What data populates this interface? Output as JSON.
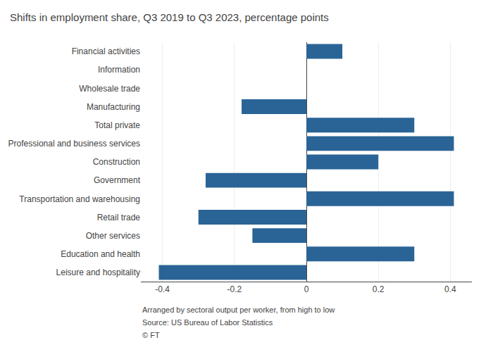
{
  "chart_data": {
    "type": "bar",
    "orientation": "horizontal",
    "title": "Shifts in employment share, Q3 2019 to Q3 2023, percentage points",
    "categories": [
      "Financial activities",
      "Information",
      "Wholesale trade",
      "Manufacturing",
      "Total private",
      "Professional and business services",
      "Construction",
      "Government",
      "Transportation and warehousing",
      "Retail trade",
      "Other services",
      "Education and health",
      "Leisure and hospitality"
    ],
    "values": [
      0.1,
      0.0,
      0.0,
      -0.18,
      0.3,
      0.41,
      0.2,
      -0.28,
      0.41,
      -0.3,
      -0.15,
      0.3,
      -0.41
    ],
    "color": "#2a6496",
    "xlim": [
      -0.46,
      0.46
    ],
    "xticks": [
      -0.4,
      -0.2,
      0,
      0.2,
      0.4
    ],
    "grid": true,
    "annotations": [
      "Arranged by sectoral output per worker, from high to low",
      "Source: US Bureau of Labor Statistics",
      "© FT"
    ]
  }
}
